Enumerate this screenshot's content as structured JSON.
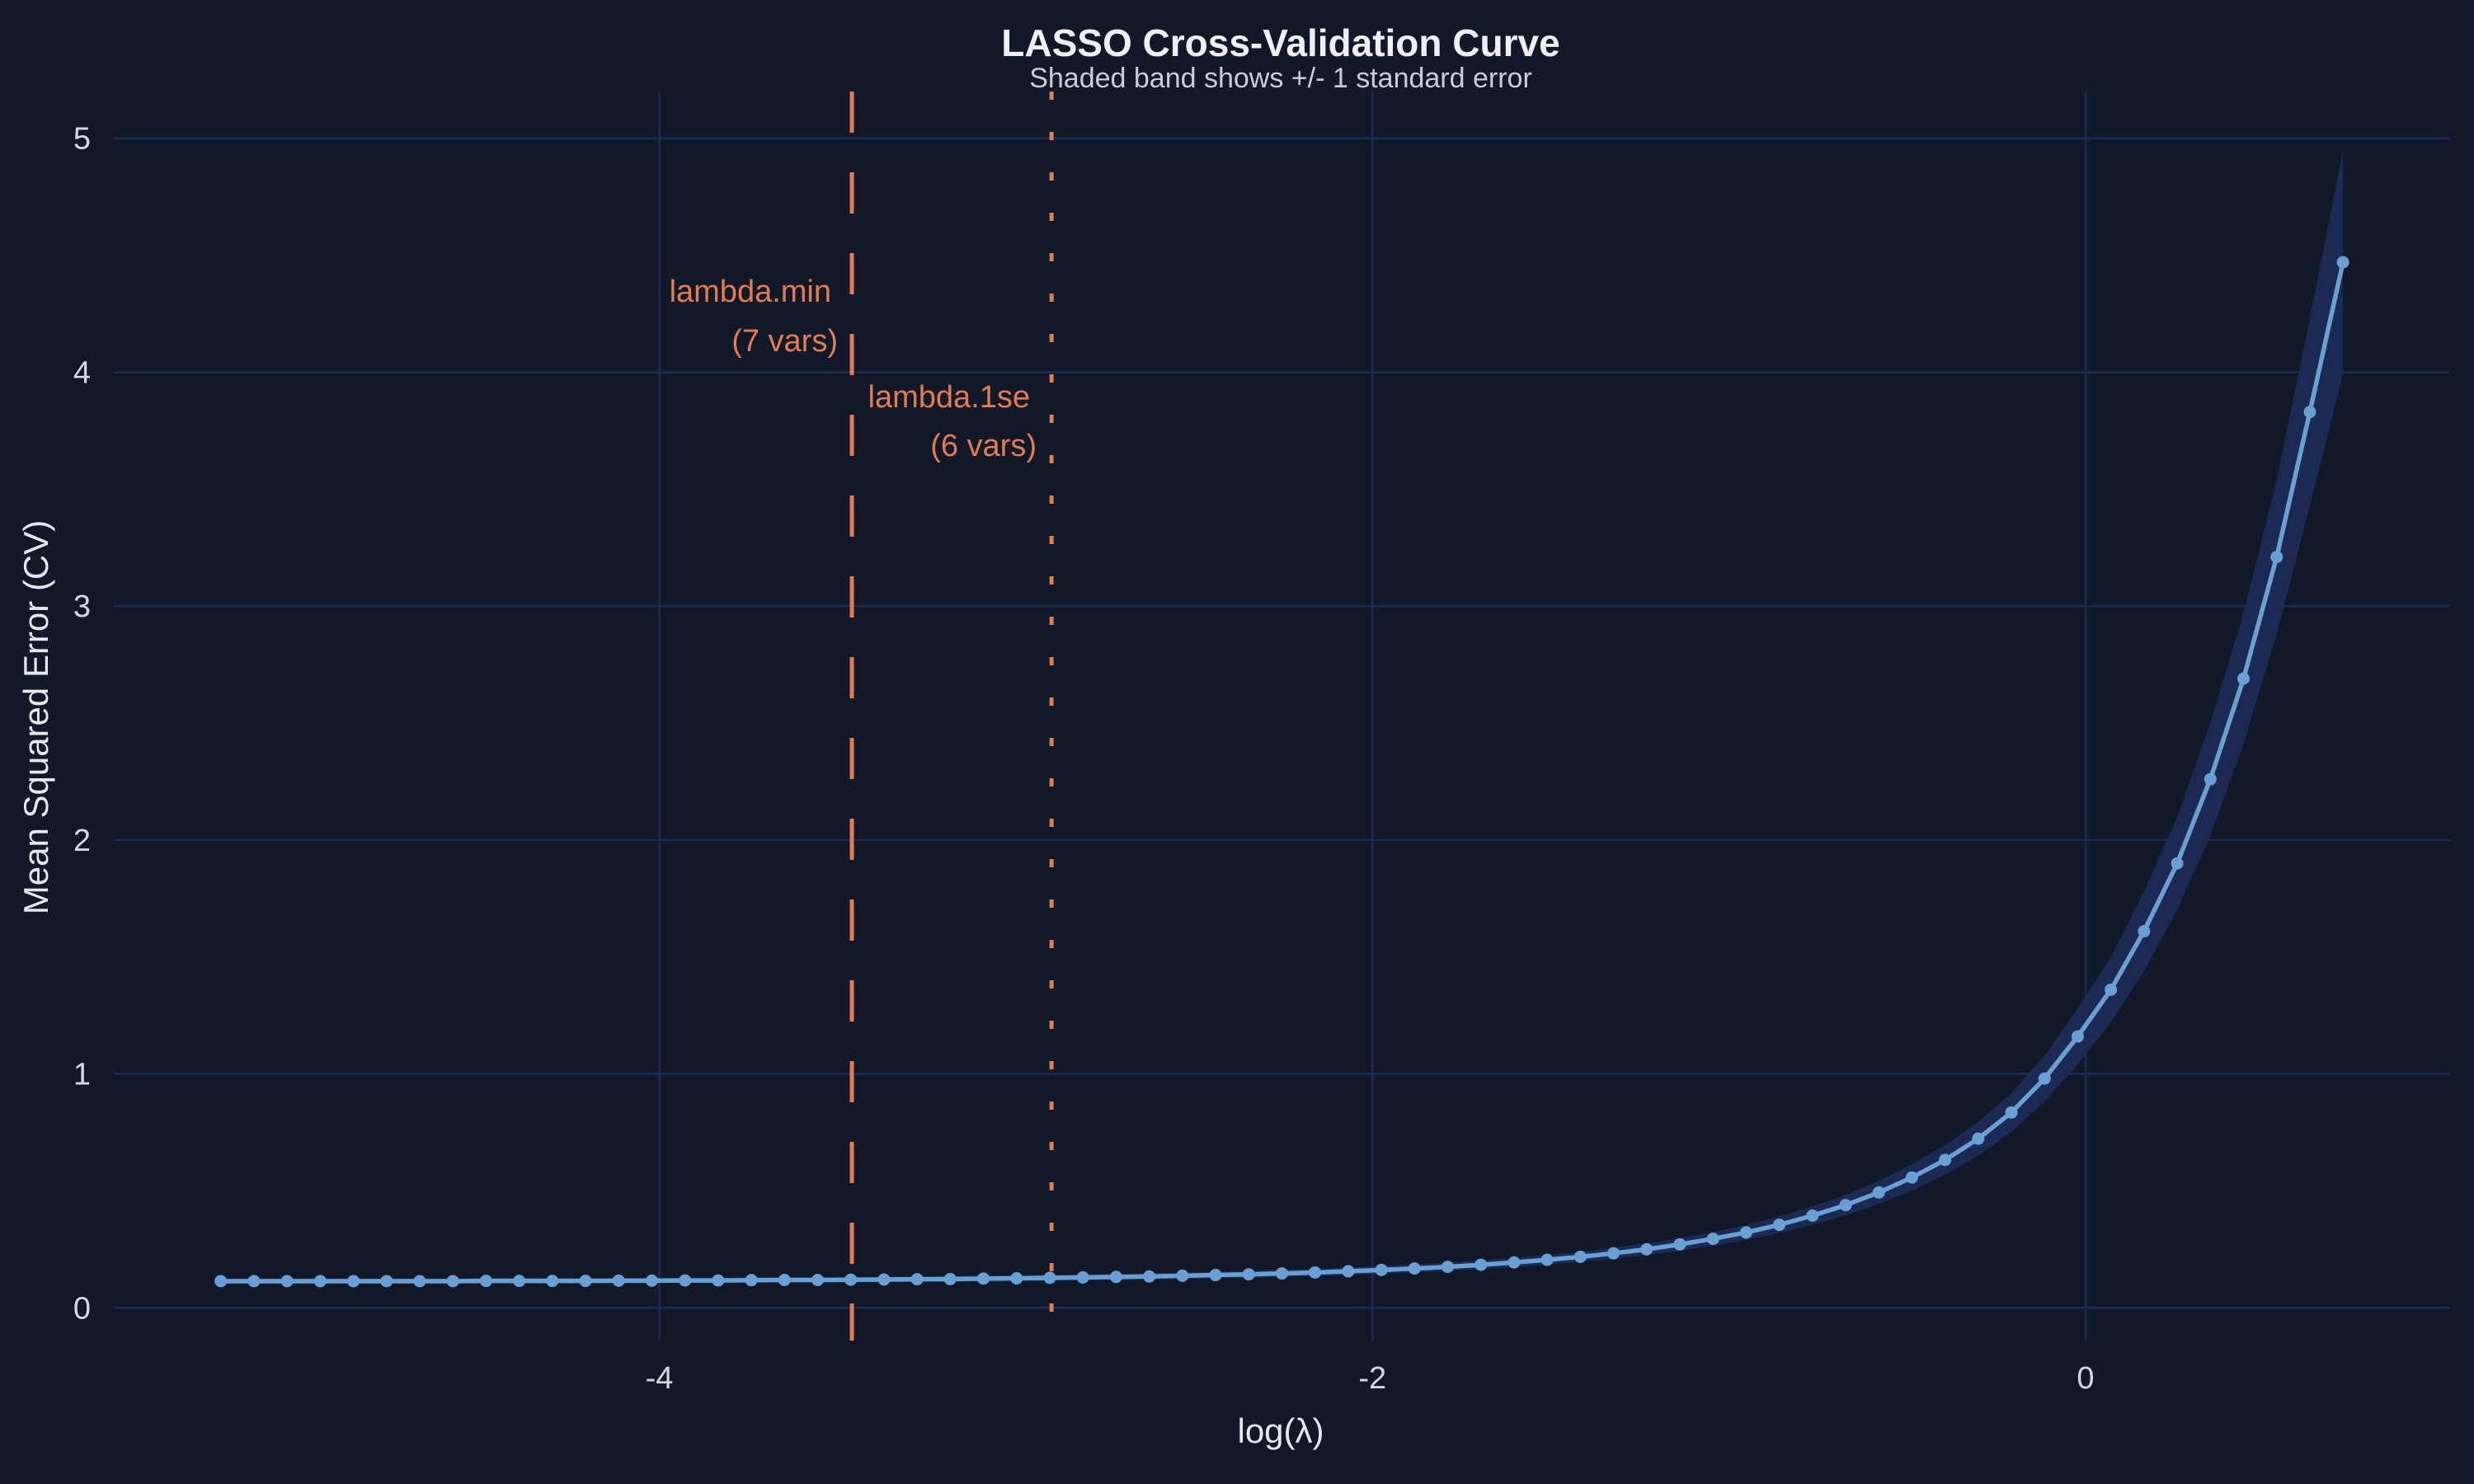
{
  "chart_data": {
    "type": "line",
    "title": "LASSO Cross-Validation Curve",
    "subtitle": "Shaded band shows +/- 1 standard error",
    "xlabel": "log(λ)",
    "ylabel": "Mean Squared Error (CV)",
    "xlim": [
      -5.53,
      1.02
    ],
    "ylim": [
      -0.14,
      5.2
    ],
    "xticks": [
      -4,
      -2,
      0
    ],
    "xtick_labels": [
      "-4",
      "-2",
      "0"
    ],
    "yticks": [
      0,
      1,
      2,
      3,
      4,
      5
    ],
    "ytick_labels": [
      "0",
      "1",
      "2",
      "3",
      "4",
      "5"
    ],
    "grid": true,
    "colors": {
      "background": "#111827",
      "grid": "#1f2b57",
      "line": "#6a9fd4",
      "band": "#1e2a55",
      "annotation": "#e07b53",
      "text": "#e5e8ef"
    },
    "x": [
      -5.23,
      -5.137,
      -5.044,
      -4.951,
      -4.858,
      -4.765,
      -4.672,
      -4.579,
      -4.486,
      -4.393,
      -4.3,
      -4.207,
      -4.114,
      -4.021,
      -3.928,
      -3.835,
      -3.742,
      -3.649,
      -3.556,
      -3.463,
      -3.37,
      -3.277,
      -3.184,
      -3.091,
      -2.998,
      -2.905,
      -2.812,
      -2.719,
      -2.626,
      -2.533,
      -2.44,
      -2.347,
      -2.254,
      -2.161,
      -2.068,
      -1.975,
      -1.882,
      -1.789,
      -1.696,
      -1.603,
      -1.51,
      -1.417,
      -1.324,
      -1.231,
      -1.138,
      -1.045,
      -0.952,
      -0.859,
      -0.766,
      -0.673,
      -0.58,
      -0.487,
      -0.394,
      -0.301,
      -0.208,
      -0.115,
      -0.022,
      0.071,
      0.164,
      0.257,
      0.35,
      0.443,
      0.536,
      0.629,
      0.722
    ],
    "mse": [
      0.114,
      0.114,
      0.114,
      0.114,
      0.114,
      0.114,
      0.114,
      0.114,
      0.115,
      0.115,
      0.115,
      0.115,
      0.116,
      0.116,
      0.117,
      0.117,
      0.118,
      0.119,
      0.119,
      0.12,
      0.121,
      0.122,
      0.123,
      0.125,
      0.126,
      0.128,
      0.13,
      0.132,
      0.134,
      0.137,
      0.14,
      0.143,
      0.147,
      0.151,
      0.156,
      0.162,
      0.168,
      0.175,
      0.184,
      0.194,
      0.205,
      0.218,
      0.233,
      0.25,
      0.271,
      0.295,
      0.322,
      0.355,
      0.394,
      0.439,
      0.493,
      0.557,
      0.632,
      0.723,
      0.835,
      0.98,
      1.16,
      1.36,
      1.61,
      1.9,
      2.26,
      2.69,
      3.21,
      3.83,
      4.47
    ],
    "se": [
      0.011,
      0.011,
      0.011,
      0.011,
      0.011,
      0.011,
      0.011,
      0.011,
      0.011,
      0.011,
      0.011,
      0.011,
      0.011,
      0.011,
      0.011,
      0.011,
      0.011,
      0.011,
      0.011,
      0.011,
      0.012,
      0.012,
      0.012,
      0.013,
      0.013,
      0.013,
      0.013,
      0.013,
      0.014,
      0.014,
      0.014,
      0.015,
      0.015,
      0.015,
      0.016,
      0.017,
      0.017,
      0.018,
      0.019,
      0.02,
      0.021,
      0.022,
      0.024,
      0.025,
      0.027,
      0.03,
      0.032,
      0.036,
      0.039,
      0.044,
      0.049,
      0.056,
      0.063,
      0.072,
      0.083,
      0.098,
      0.12,
      0.14,
      0.17,
      0.2,
      0.24,
      0.28,
      0.33,
      0.4,
      0.48
    ],
    "vlines": [
      {
        "name": "lambda.min",
        "x": -3.46,
        "style": "dashed",
        "label": "lambda.min",
        "sublabel": "(7 vars)"
      },
      {
        "name": "lambda.1se",
        "x": -2.9,
        "style": "dotted",
        "label": "lambda.1se",
        "sublabel": "(6 vars)"
      }
    ]
  }
}
